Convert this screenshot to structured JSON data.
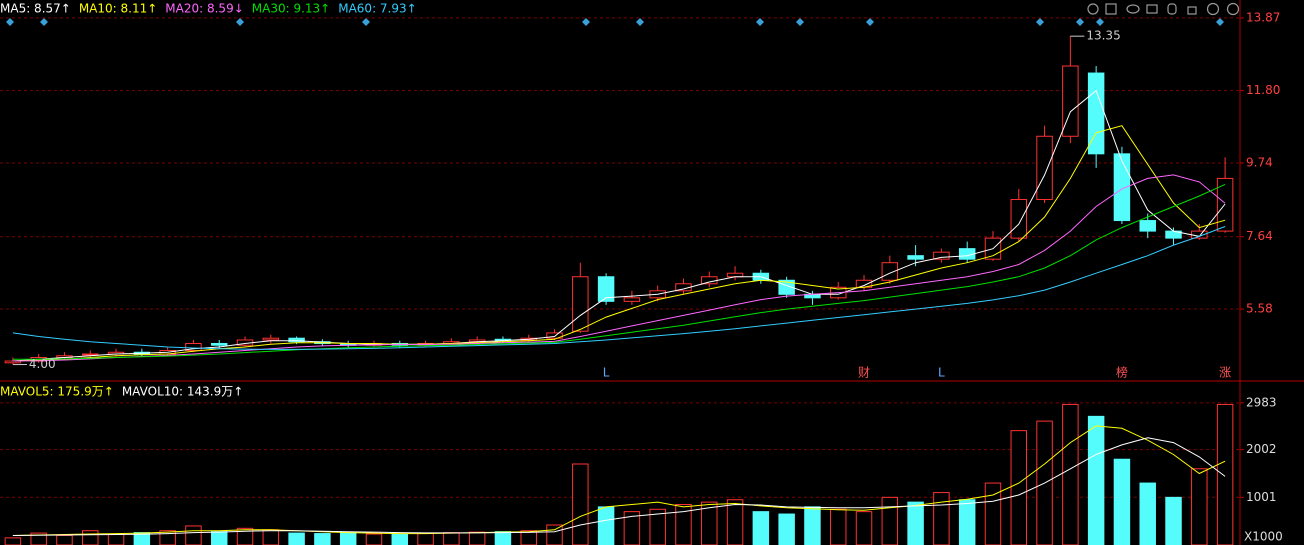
{
  "chart_data": [
    {
      "type": "candlestick",
      "open": [
        4.05,
        4.1,
        4.2,
        4.3,
        4.3,
        4.35,
        4.3,
        4.4,
        4.6,
        4.55,
        4.7,
        4.75,
        4.65,
        4.6,
        4.55,
        4.6,
        4.55,
        4.6,
        4.65,
        4.72,
        4.7,
        4.75,
        4.95,
        6.5,
        5.8,
        5.9,
        6.1,
        6.3,
        6.5,
        6.6,
        6.4,
        6.0,
        5.9,
        6.2,
        6.4,
        7.1,
        7.0,
        7.3,
        7.0,
        7.6,
        8.7,
        10.5,
        12.3,
        10.0,
        8.1,
        7.8,
        7.6,
        7.8
      ],
      "high": [
        4.2,
        4.3,
        4.35,
        4.4,
        4.45,
        4.45,
        4.5,
        4.7,
        4.7,
        4.8,
        4.85,
        4.8,
        4.72,
        4.68,
        4.68,
        4.68,
        4.68,
        4.75,
        4.8,
        4.8,
        4.85,
        5.0,
        6.9,
        6.6,
        6.1,
        6.25,
        6.45,
        6.65,
        6.8,
        6.7,
        6.5,
        6.1,
        6.35,
        6.55,
        7.1,
        7.4,
        7.3,
        7.5,
        7.8,
        9.0,
        10.8,
        13.35,
        12.5,
        10.2,
        8.3,
        7.9,
        8.0,
        9.9
      ],
      "low": [
        4.0,
        4.05,
        4.12,
        4.2,
        4.22,
        4.22,
        4.25,
        4.35,
        4.45,
        4.5,
        4.6,
        4.58,
        4.52,
        4.48,
        4.5,
        4.48,
        4.5,
        4.55,
        4.6,
        4.62,
        4.65,
        4.7,
        4.9,
        5.7,
        5.7,
        5.8,
        6.0,
        6.2,
        6.4,
        6.3,
        5.9,
        5.7,
        5.85,
        6.1,
        6.3,
        6.8,
        6.9,
        6.9,
        6.95,
        7.5,
        8.6,
        10.3,
        9.6,
        8.0,
        7.6,
        7.4,
        7.55,
        7.75
      ],
      "close": [
        4.1,
        4.2,
        4.25,
        4.3,
        4.35,
        4.3,
        4.4,
        4.6,
        4.55,
        4.7,
        4.75,
        4.65,
        4.6,
        4.55,
        4.6,
        4.55,
        4.6,
        4.65,
        4.7,
        4.7,
        4.75,
        4.9,
        6.5,
        5.8,
        5.9,
        6.1,
        6.3,
        6.5,
        6.6,
        6.4,
        6.0,
        5.9,
        6.2,
        6.4,
        6.9,
        7.0,
        7.2,
        7.0,
        7.6,
        8.7,
        10.5,
        12.5,
        10.0,
        8.1,
        7.8,
        7.6,
        7.8,
        9.3
      ],
      "up_color": "#ff3232",
      "down_color": "#54fcfc",
      "ylim": [
        3.56,
        14.38
      ],
      "yticks": [
        5.58,
        7.64,
        9.74,
        {
          "value": 11.8,
          "label": "11.80"
        },
        13.87
      ],
      "grid": true,
      "series": [
        {
          "name": "MA5: 8.57↑",
          "color": "#ffffff",
          "values": [
            4.1,
            4.15,
            4.2,
            4.25,
            4.3,
            4.32,
            4.35,
            4.45,
            4.5,
            4.6,
            4.68,
            4.68,
            4.64,
            4.6,
            4.58,
            4.57,
            4.58,
            4.6,
            4.65,
            4.68,
            4.72,
            4.8,
            5.4,
            5.9,
            5.95,
            6.0,
            6.15,
            6.35,
            6.5,
            6.5,
            6.25,
            6.0,
            6.0,
            6.25,
            6.6,
            6.9,
            7.05,
            7.1,
            7.3,
            8.0,
            9.4,
            11.2,
            11.8,
            9.8,
            8.4,
            7.8,
            7.65,
            8.57
          ]
        },
        {
          "name": "MA10: 8.11↑",
          "color": "#ffff00",
          "values": [
            4.1,
            4.12,
            4.15,
            4.2,
            4.25,
            4.28,
            4.3,
            4.38,
            4.45,
            4.5,
            4.58,
            4.62,
            4.62,
            4.6,
            4.6,
            4.58,
            4.58,
            4.6,
            4.62,
            4.65,
            4.68,
            4.72,
            5.0,
            5.35,
            5.6,
            5.85,
            6.0,
            6.15,
            6.3,
            6.4,
            6.35,
            6.25,
            6.15,
            6.2,
            6.35,
            6.55,
            6.75,
            6.9,
            7.1,
            7.5,
            8.2,
            9.3,
            10.6,
            10.8,
            9.7,
            8.6,
            7.9,
            8.11
          ]
        },
        {
          "name": "MA20: 8.59↓",
          "color": "#ff66ff",
          "values": [
            4.1,
            4.11,
            4.13,
            4.16,
            4.2,
            4.23,
            4.26,
            4.3,
            4.35,
            4.4,
            4.45,
            4.5,
            4.53,
            4.55,
            4.56,
            4.57,
            4.57,
            4.58,
            4.6,
            4.62,
            4.64,
            4.66,
            4.8,
            4.95,
            5.1,
            5.25,
            5.4,
            5.55,
            5.7,
            5.85,
            5.95,
            6.0,
            6.05,
            6.1,
            6.2,
            6.3,
            6.4,
            6.5,
            6.65,
            6.85,
            7.25,
            7.8,
            8.5,
            9.0,
            9.3,
            9.4,
            9.2,
            8.59
          ]
        },
        {
          "name": "MA30: 9.13↑",
          "color": "#00e000",
          "values": [
            4.15,
            4.15,
            4.16,
            4.18,
            4.2,
            4.22,
            4.24,
            4.27,
            4.3,
            4.34,
            4.38,
            4.42,
            4.45,
            4.48,
            4.5,
            4.52,
            4.54,
            4.55,
            4.57,
            4.59,
            4.61,
            4.63,
            4.72,
            4.82,
            4.92,
            5.02,
            5.12,
            5.24,
            5.36,
            5.48,
            5.58,
            5.66,
            5.74,
            5.82,
            5.92,
            6.02,
            6.12,
            6.22,
            6.35,
            6.5,
            6.75,
            7.1,
            7.55,
            7.9,
            8.2,
            8.5,
            8.8,
            9.13
          ]
        },
        {
          "name": "MA60: 7.93↑",
          "color": "#33ccff",
          "values": [
            4.9,
            4.8,
            4.72,
            4.65,
            4.6,
            4.55,
            4.5,
            4.47,
            4.45,
            4.44,
            4.43,
            4.43,
            4.44,
            4.45,
            4.46,
            4.48,
            4.5,
            4.52,
            4.54,
            4.56,
            4.58,
            4.6,
            4.65,
            4.7,
            4.76,
            4.82,
            4.88,
            4.95,
            5.02,
            5.1,
            5.18,
            5.26,
            5.34,
            5.42,
            5.5,
            5.58,
            5.66,
            5.74,
            5.84,
            5.96,
            6.12,
            6.35,
            6.6,
            6.85,
            7.1,
            7.4,
            7.65,
            7.93
          ]
        }
      ],
      "annotations": [
        {
          "text": "13.35",
          "candle": 41
        },
        {
          "text": "4.00",
          "candle": 0
        }
      ],
      "events": [
        {
          "label": "L",
          "candle": 23,
          "color": "#5fa8ff"
        },
        {
          "label": "财",
          "candle": 33,
          "color": "#ff5050"
        },
        {
          "label": "L",
          "candle": 36,
          "color": "#5fa8ff"
        },
        {
          "label": "榜",
          "candle": 43,
          "color": "#ff5050"
        },
        {
          "label": "涨",
          "candle": 47,
          "color": "#ff5050"
        }
      ]
    },
    {
      "type": "bar",
      "values": [
        150,
        250,
        200,
        300,
        220,
        260,
        300,
        400,
        280,
        350,
        320,
        250,
        240,
        260,
        230,
        220,
        250,
        260,
        270,
        280,
        300,
        420,
        1700,
        800,
        700,
        750,
        850,
        900,
        950,
        700,
        650,
        800,
        750,
        700,
        1000,
        900,
        1100,
        950,
        1300,
        2400,
        2600,
        2950,
        2700,
        1800,
        1300,
        1000,
        1600,
        2950
      ],
      "ylim": [
        0,
        3400
      ],
      "yticks": [
        1001,
        2002,
        2983
      ],
      "unit_label": "X1000",
      "grid": true,
      "series": [
        {
          "name": "MAVOL5: 175.9万↑",
          "color": "#ffff00",
          "values": [
            200,
            210,
            220,
            230,
            240,
            250,
            270,
            300,
            300,
            320,
            320,
            300,
            280,
            260,
            250,
            240,
            240,
            250,
            260,
            270,
            280,
            320,
            600,
            800,
            850,
            900,
            800,
            850,
            870,
            820,
            780,
            760,
            740,
            730,
            780,
            830,
            900,
            960,
            1050,
            1300,
            1700,
            2150,
            2500,
            2450,
            2200,
            1900,
            1500,
            1759
          ]
        },
        {
          "name": "MAVOL10: 143.9万↑",
          "color": "#ffffff",
          "values": [
            200,
            205,
            210,
            215,
            220,
            225,
            240,
            260,
            270,
            290,
            300,
            300,
            290,
            280,
            270,
            260,
            255,
            255,
            255,
            260,
            265,
            280,
            420,
            520,
            600,
            650,
            700,
            780,
            850,
            840,
            800,
            790,
            780,
            780,
            800,
            820,
            840,
            870,
            920,
            1050,
            1300,
            1600,
            1900,
            2100,
            2250,
            2150,
            1850,
            1439
          ]
        }
      ]
    }
  ]
}
